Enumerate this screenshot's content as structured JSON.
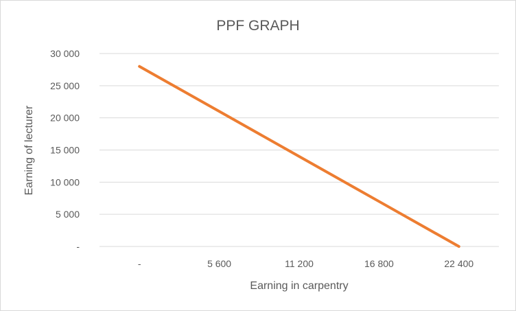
{
  "chart_data": {
    "type": "line",
    "title": "PPF GRAPH",
    "xlabel": "Earning in carpentry",
    "ylabel": "Earning of lecturer",
    "x": [
      0,
      5600,
      11200,
      16800,
      22400
    ],
    "x_tick_labels": [
      "-",
      "5 600",
      "11 200",
      "16 800",
      "22 400"
    ],
    "y_ticks": [
      0,
      5000,
      10000,
      15000,
      20000,
      25000,
      30000
    ],
    "y_tick_labels": [
      "-",
      "5 000",
      "10 000",
      "15 000",
      "20 000",
      "25 000",
      "30 000"
    ],
    "ylim": [
      0,
      30000
    ],
    "grid": "horizontal",
    "legend": "none",
    "series": [
      {
        "values": [
          28000,
          21000,
          14000,
          7000,
          0
        ],
        "color": "#ED7D31"
      }
    ]
  },
  "colors": {
    "line": "#ED7D31",
    "grid": "#d9d9d9",
    "text": "#595959",
    "frame": "#d9d9d9"
  }
}
